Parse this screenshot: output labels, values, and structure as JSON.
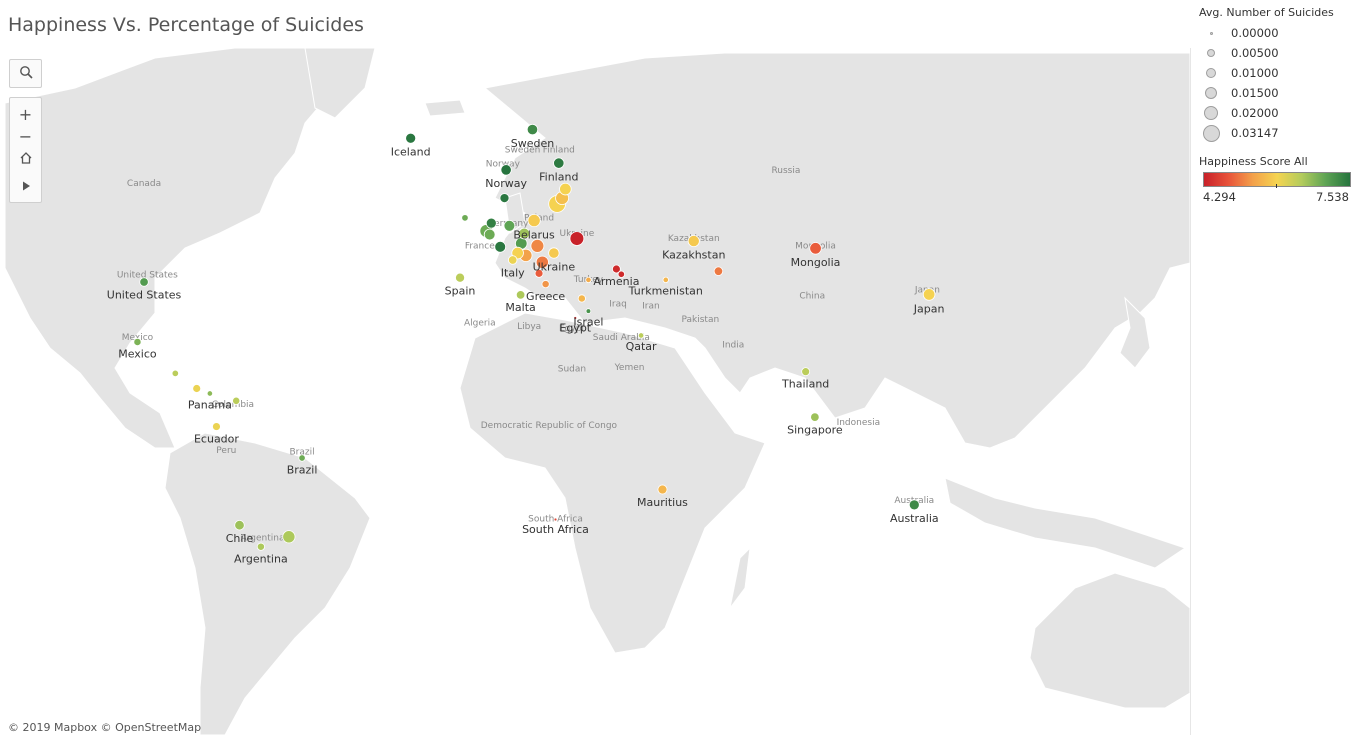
{
  "title": "Happiness Vs. Percentage of Suicides",
  "attribution": "© 2019 Mapbox © OpenStreetMap",
  "toolbar": {
    "search_icon": "search-icon",
    "zoom_in": "+",
    "zoom_out": "−",
    "home_icon": "home-icon",
    "play_icon": "play-icon"
  },
  "legend": {
    "size_title": "Avg. Number of Suicides",
    "size_items": [
      {
        "label": "0.00000",
        "value": 0.0
      },
      {
        "label": "0.00500",
        "value": 0.005
      },
      {
        "label": "0.01000",
        "value": 0.01
      },
      {
        "label": "0.01500",
        "value": 0.015
      },
      {
        "label": "0.02000",
        "value": 0.02
      },
      {
        "label": "0.03147",
        "value": 0.03147
      }
    ],
    "color_title": "Happiness Score All",
    "color_min": "4.294",
    "color_max": "7.538",
    "colors": [
      "#c82129",
      "#e8533a",
      "#f3a04a",
      "#f5d451",
      "#b4cc5c",
      "#5ea454",
      "#26743e"
    ]
  },
  "base_labels": [
    {
      "name": "Russia",
      "lon": 95,
      "lat": 60
    },
    {
      "name": "Sweden",
      "lon": 15,
      "lat": 63
    },
    {
      "name": "Norway",
      "lon": 9,
      "lat": 61
    },
    {
      "name": "Finland",
      "lon": 26,
      "lat": 63
    },
    {
      "name": "Poland",
      "lon": 20,
      "lat": 52
    },
    {
      "name": "Germany",
      "lon": 10.5,
      "lat": 51
    },
    {
      "name": "France",
      "lon": 2,
      "lat": 46.5
    },
    {
      "name": "Ukraine",
      "lon": 31.5,
      "lat": 49
    },
    {
      "name": "Kazakhstan",
      "lon": 67,
      "lat": 48
    },
    {
      "name": "Mongolia",
      "lon": 104,
      "lat": 46.5
    },
    {
      "name": "China",
      "lon": 103,
      "lat": 35
    },
    {
      "name": "Iran",
      "lon": 54,
      "lat": 32.5
    },
    {
      "name": "Iraq",
      "lon": 44,
      "lat": 33
    },
    {
      "name": "Turkey",
      "lon": 35,
      "lat": 39
    },
    {
      "name": "Pakistan",
      "lon": 69,
      "lat": 29
    },
    {
      "name": "India",
      "lon": 79,
      "lat": 22
    },
    {
      "name": "Saudi Arabia",
      "lon": 45,
      "lat": 24
    },
    {
      "name": "Yemen",
      "lon": 47.5,
      "lat": 15.5
    },
    {
      "name": "Algeria",
      "lon": 2,
      "lat": 28
    },
    {
      "name": "Libya",
      "lon": 17,
      "lat": 27
    },
    {
      "name": "Egypt",
      "lon": 30,
      "lat": 26.5
    },
    {
      "name": "Sudan",
      "lon": 30,
      "lat": 15
    },
    {
      "name": "Democratic Republic of Congo",
      "lon": 23,
      "lat": -2
    },
    {
      "name": "South Africa",
      "lon": 25,
      "lat": -29
    },
    {
      "name": "Indonesia",
      "lon": 117,
      "lat": -1
    },
    {
      "name": "Australia",
      "lon": 134,
      "lat": -24
    },
    {
      "name": "Japan",
      "lon": 138,
      "lat": 36.5
    },
    {
      "name": "Canada",
      "lon": -100,
      "lat": 58
    },
    {
      "name": "United States",
      "lon": -99,
      "lat": 40
    },
    {
      "name": "Mexico",
      "lon": -102,
      "lat": 24
    },
    {
      "name": "Colombia",
      "lon": -73,
      "lat": 4.5
    },
    {
      "name": "Peru",
      "lon": -75,
      "lat": -9.5
    },
    {
      "name": "Brazil",
      "lon": -52,
      "lat": -10
    },
    {
      "name": "Argentina",
      "lon": -64,
      "lat": -34
    }
  ],
  "points": [
    {
      "label": "Iceland",
      "lon": -19,
      "lat": 64.9,
      "suicides": 0.008,
      "happiness": 7.5
    },
    {
      "label": "Sweden",
      "lon": 18,
      "lat": 66,
      "suicides": 0.009,
      "happiness": 7.3
    },
    {
      "label": "Norway",
      "lon": 10,
      "lat": 60.5,
      "suicides": 0.009,
      "happiness": 7.54
    },
    {
      "label": "Finland",
      "lon": 26,
      "lat": 61.5,
      "suicides": 0.009,
      "happiness": 7.47
    },
    {
      "label": "",
      "lon": 28,
      "lat": 57.5,
      "suicides": 0.012,
      "happiness": 5.9
    },
    {
      "label": "",
      "lon": 27,
      "lat": 56,
      "suicides": 0.016,
      "happiness": 5.7
    },
    {
      "label": "",
      "lon": 25.5,
      "lat": 55,
      "suicides": 0.031,
      "happiness": 5.9
    },
    {
      "label": "",
      "lon": 9.5,
      "lat": 56,
      "suicides": 0.006,
      "happiness": 7.5
    },
    {
      "label": "Belarus",
      "lon": 18.5,
      "lat": 52,
      "suicides": 0.014,
      "happiness": 5.8
    },
    {
      "label": "",
      "lon": 31.5,
      "lat": 48.5,
      "suicides": 0.019,
      "happiness": 4.3
    },
    {
      "label": "",
      "lon": -2.5,
      "lat": 52.5,
      "suicides": 0.002,
      "happiness": 6.9
    },
    {
      "label": "",
      "lon": 5.5,
      "lat": 51.5,
      "suicides": 0.008,
      "happiness": 7.4
    },
    {
      "label": "",
      "lon": 4,
      "lat": 50,
      "suicides": 0.016,
      "happiness": 6.9
    },
    {
      "label": "",
      "lon": 5,
      "lat": 49.3,
      "suicides": 0.01,
      "happiness": 6.9
    },
    {
      "label": "",
      "lon": 11,
      "lat": 51,
      "suicides": 0.01,
      "happiness": 7.0
    },
    {
      "label": "",
      "lon": 15.5,
      "lat": 49.5,
      "suicides": 0.01,
      "happiness": 6.6
    },
    {
      "label": "",
      "lon": 8.2,
      "lat": 46.8,
      "suicides": 0.01,
      "happiness": 7.5
    },
    {
      "label": "",
      "lon": 14.6,
      "lat": 47.5,
      "suicides": 0.012,
      "happiness": 7.1
    },
    {
      "label": "",
      "lon": 19.5,
      "lat": 47,
      "suicides": 0.016,
      "happiness": 5.2
    },
    {
      "label": "",
      "lon": 13.5,
      "lat": 45.5,
      "suicides": 0.012,
      "happiness": 5.9
    },
    {
      "label": "",
      "lon": 16,
      "lat": 45,
      "suicides": 0.014,
      "happiness": 5.4
    },
    {
      "label": "Ukraine",
      "lon": 24.5,
      "lat": 45.5,
      "suicides": 0.009,
      "happiness": 5.8
    },
    {
      "label": "",
      "lon": 21,
      "lat": 43.5,
      "suicides": 0.014,
      "happiness": 5.1
    },
    {
      "label": "Italy",
      "lon": 12,
      "lat": 44,
      "suicides": 0.005,
      "happiness": 6.0
    },
    {
      "label": "Spain",
      "lon": -4,
      "lat": 40,
      "suicides": 0.006,
      "happiness": 6.4
    },
    {
      "label": "",
      "lon": 20,
      "lat": 41,
      "suicides": 0.004,
      "happiness": 4.9
    },
    {
      "label": "Greece",
      "lon": 22,
      "lat": 38.5,
      "suicides": 0.003,
      "happiness": 5.3
    },
    {
      "label": "Malta",
      "lon": 14.4,
      "lat": 35.9,
      "suicides": 0.005,
      "happiness": 6.5
    },
    {
      "label": "",
      "lon": 35,
      "lat": 39.5,
      "suicides": 0.001,
      "happiness": 5.5
    },
    {
      "label": "Armenia",
      "lon": 43.5,
      "lat": 42,
      "suicides": 0.004,
      "happiness": 4.4
    },
    {
      "label": "",
      "lon": 45,
      "lat": 40.8,
      "suicides": 0.002,
      "happiness": 4.4
    },
    {
      "label": "Turkmenistan",
      "lon": 58.5,
      "lat": 39.5,
      "suicides": 0.001,
      "happiness": 5.6
    },
    {
      "label": "",
      "lon": 33,
      "lat": 35,
      "suicides": 0.003,
      "happiness": 5.6
    },
    {
      "label": "Israel",
      "lon": 35,
      "lat": 31.8,
      "suicides": 0.0005,
      "happiness": 7.2
    },
    {
      "label": "Egypt",
      "lon": 31,
      "lat": 30,
      "suicides": 0.0,
      "happiness": 4.4
    },
    {
      "label": "Qatar",
      "lon": 51,
      "lat": 25.3,
      "suicides": 0.001,
      "happiness": 6.4
    },
    {
      "label": "Kazakhstan",
      "lon": 67,
      "lat": 48,
      "suicides": 0.011,
      "happiness": 5.8
    },
    {
      "label": "",
      "lon": 74.5,
      "lat": 41.5,
      "suicides": 0.005,
      "happiness": 5.1
    },
    {
      "label": "Mongolia",
      "lon": 104,
      "lat": 46.5,
      "suicides": 0.012,
      "happiness": 4.9
    },
    {
      "label": "Japan",
      "lon": 138.5,
      "lat": 36,
      "suicides": 0.012,
      "happiness": 5.9
    },
    {
      "label": "Thailand",
      "lon": 101,
      "lat": 15,
      "suicides": 0.004,
      "happiness": 6.4
    },
    {
      "label": "Singapore",
      "lon": 103.8,
      "lat": 1.35,
      "suicides": 0.005,
      "happiness": 6.6
    },
    {
      "label": "Australia",
      "lon": 134,
      "lat": -24.5,
      "suicides": 0.008,
      "happiness": 7.3
    },
    {
      "label": "Mauritius",
      "lon": 57.5,
      "lat": -20.2,
      "suicides": 0.006,
      "happiness": 5.6
    },
    {
      "label": "South Africa",
      "lon": 25,
      "lat": -28.5,
      "suicides": 0.0,
      "happiness": 4.7
    },
    {
      "label": "United States",
      "lon": -100,
      "lat": 39,
      "suicides": 0.005,
      "happiness": 7.1
    },
    {
      "label": "Mexico",
      "lon": -102,
      "lat": 23.5,
      "suicides": 0.003,
      "happiness": 6.8
    },
    {
      "label": "",
      "lon": -90.5,
      "lat": 14.5,
      "suicides": 0.002,
      "happiness": 6.4
    },
    {
      "label": "",
      "lon": -84,
      "lat": 10,
      "suicides": 0.004,
      "happiness": 6.0
    },
    {
      "label": "Panama",
      "lon": -80,
      "lat": 8.5,
      "suicides": 0.001,
      "happiness": 6.7
    },
    {
      "label": "",
      "lon": -72,
      "lat": 6.3,
      "suicides": 0.003,
      "happiness": 6.4
    },
    {
      "label": "Ecuador",
      "lon": -78,
      "lat": -1.5,
      "suicides": 0.004,
      "happiness": 6.0
    },
    {
      "label": "Brazil",
      "lon": -52,
      "lat": -11,
      "suicides": 0.002,
      "happiness": 6.9
    },
    {
      "label": "Chile",
      "lon": -71,
      "lat": -30,
      "suicides": 0.007,
      "happiness": 6.6
    },
    {
      "label": "Argentina",
      "lon": -64.5,
      "lat": -35.5,
      "suicides": 0.003,
      "happiness": 6.5
    },
    {
      "label": "",
      "lon": -56,
      "lat": -33,
      "suicides": 0.014,
      "happiness": 6.5
    }
  ]
}
